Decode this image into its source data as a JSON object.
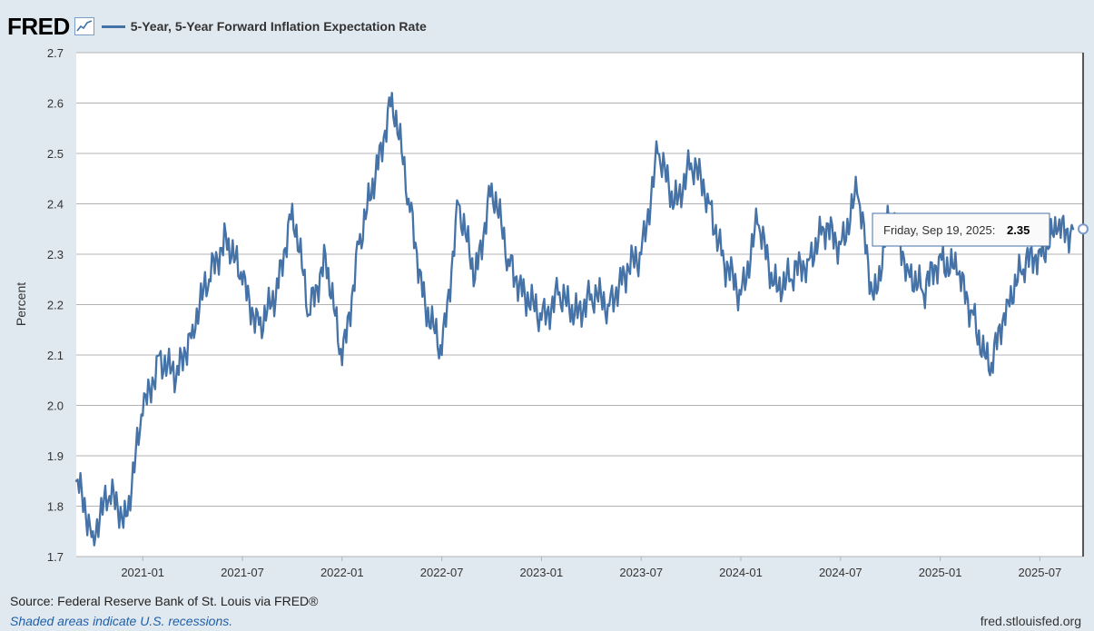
{
  "header": {
    "logo": "FRED",
    "series_title": "5-Year, 5-Year Forward Inflation Expectation Rate"
  },
  "colors": {
    "series": "#4572a7",
    "grid": "#b3b3b3",
    "background": "#e1e9f0",
    "plot_bg": "#ffffff"
  },
  "tooltip": {
    "date": "Friday, Sep 19, 2025:",
    "value": "2.35"
  },
  "footer": {
    "source": "Source: Federal Reserve Bank of St. Louis via FRED®",
    "note": "Shaded areas indicate U.S. recessions.",
    "url": "fred.stlouisfed.org"
  },
  "chart_data": {
    "type": "line",
    "title": "5-Year, 5-Year Forward Inflation Expectation Rate",
    "ylabel": "Percent",
    "xlabel": "",
    "ylim": [
      1.7,
      2.7
    ],
    "yticks": [
      "1.7",
      "1.8",
      "1.9",
      "2.0",
      "2.1",
      "2.2",
      "2.3",
      "2.4",
      "2.5",
      "2.6",
      "2.7"
    ],
    "xticks": [
      "2021-01",
      "2021-07",
      "2022-01",
      "2022-07",
      "2023-01",
      "2023-07",
      "2024-01",
      "2024-07",
      "2025-01",
      "2025-07"
    ],
    "series": [
      {
        "name": "5-Year, 5-Year Forward Inflation Expectation Rate",
        "x": [
          "2020-09",
          "2020-10",
          "2020-11",
          "2020-12",
          "2021-01",
          "2021-02",
          "2021-03",
          "2021-04",
          "2021-05",
          "2021-06",
          "2021-07",
          "2021-08",
          "2021-09",
          "2021-10",
          "2021-11",
          "2021-12",
          "2022-01",
          "2022-02",
          "2022-03",
          "2022-04",
          "2022-05",
          "2022-06",
          "2022-07",
          "2022-08",
          "2022-09",
          "2022-10",
          "2022-11",
          "2022-12",
          "2023-01",
          "2023-02",
          "2023-03",
          "2023-04",
          "2023-05",
          "2023-06",
          "2023-07",
          "2023-08",
          "2023-09",
          "2023-10",
          "2023-11",
          "2023-12",
          "2024-01",
          "2024-02",
          "2024-03",
          "2024-04",
          "2024-05",
          "2024-06",
          "2024-07",
          "2024-08",
          "2024-09",
          "2024-10",
          "2024-11",
          "2024-12",
          "2025-01",
          "2025-02",
          "2025-03",
          "2025-04",
          "2025-05",
          "2025-06",
          "2025-07",
          "2025-08",
          "2025-09"
        ],
        "values": [
          1.85,
          1.75,
          1.82,
          1.78,
          1.98,
          2.1,
          2.05,
          2.16,
          2.25,
          2.34,
          2.24,
          2.16,
          2.21,
          2.4,
          2.18,
          2.3,
          2.08,
          2.32,
          2.45,
          2.62,
          2.41,
          2.2,
          2.1,
          2.4,
          2.25,
          2.44,
          2.29,
          2.22,
          2.17,
          2.22,
          2.18,
          2.22,
          2.2,
          2.26,
          2.3,
          2.5,
          2.4,
          2.48,
          2.42,
          2.28,
          2.22,
          2.36,
          2.24,
          2.25,
          2.29,
          2.35,
          2.32,
          2.42,
          2.21,
          2.38,
          2.28,
          2.22,
          2.3,
          2.26,
          2.18,
          2.06,
          2.21,
          2.27,
          2.31,
          2.34,
          2.35
        ]
      }
    ]
  }
}
